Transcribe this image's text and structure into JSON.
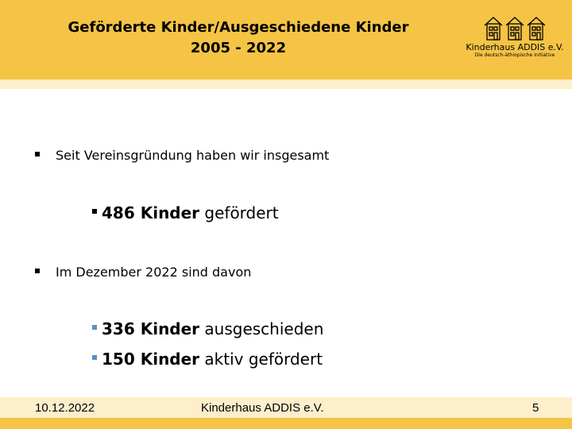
{
  "header": {
    "title_line1": "Geförderte Kinder/Ausgeschiedene Kinder",
    "title_line2": "2005 - 2022"
  },
  "logo": {
    "name": "Kinderhaus ADDIS e.V.",
    "tagline": "Die deutsch-äthiopische Initiative",
    "icon": "three-houses-icon"
  },
  "content": {
    "bullet1": "Seit Vereinsgründung haben wir insgesamt",
    "sub1": {
      "bold": "486 Kinder",
      "rest": " gefördert"
    },
    "bullet2": "Im Dezember 2022 sind davon",
    "sub2": {
      "bold": "336 Kinder",
      "rest": " ausgeschieden"
    },
    "sub3": {
      "bold": "150 Kinder",
      "rest": " aktiv gefördert"
    }
  },
  "footer": {
    "date": "10.12.2022",
    "org": "Kinderhaus ADDIS e.V.",
    "page": "5"
  },
  "colors": {
    "header": "#f5c445",
    "band": "#fdefcb",
    "sub_bullet_blue": "#5b8fc9"
  }
}
